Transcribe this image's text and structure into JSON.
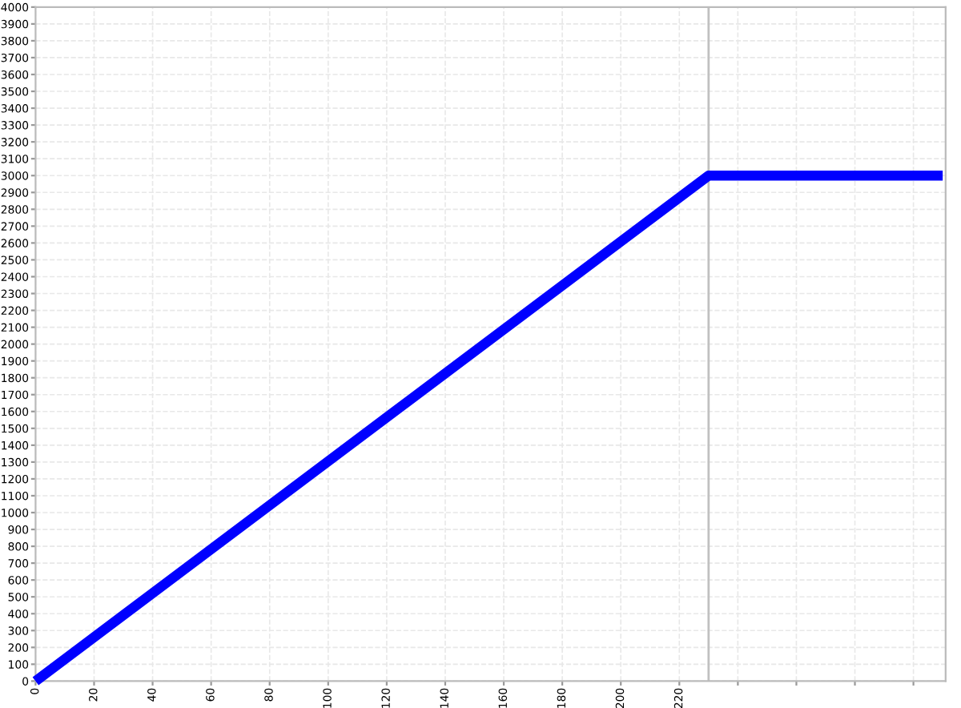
{
  "chart_data": {
    "type": "line",
    "x": [
      0,
      230,
      310
    ],
    "series": [
      {
        "color": "#0000ff",
        "values": [
          0,
          3000,
          3000
        ]
      }
    ],
    "xlim": [
      0,
      311
    ],
    "xticks": [
      0,
      20,
      40,
      60,
      80,
      100,
      120,
      140,
      160,
      180,
      200,
      220,
      {
        "value": 240,
        "label": null
      },
      {
        "value": 260,
        "label": null
      },
      {
        "value": 280,
        "label": null
      },
      {
        "value": 300,
        "label": null
      }
    ],
    "ylim": [
      0,
      4000
    ],
    "yticks": [
      0,
      100,
      200,
      300,
      400,
      500,
      600,
      700,
      800,
      900,
      1000,
      1100,
      1200,
      1300,
      1400,
      1500,
      1600,
      1700,
      1800,
      1900,
      2000,
      2100,
      2200,
      2300,
      2400,
      2500,
      2600,
      2700,
      2800,
      2900,
      3000,
      3100,
      3200,
      3300,
      3400,
      3500,
      3600,
      3700,
      3800,
      3900,
      4000
    ],
    "ref_lines": [
      {
        "axis": "x",
        "value": 230,
        "color": "#c0c0c0"
      }
    ],
    "grid": true,
    "marker": "none",
    "line_style": "solid"
  }
}
